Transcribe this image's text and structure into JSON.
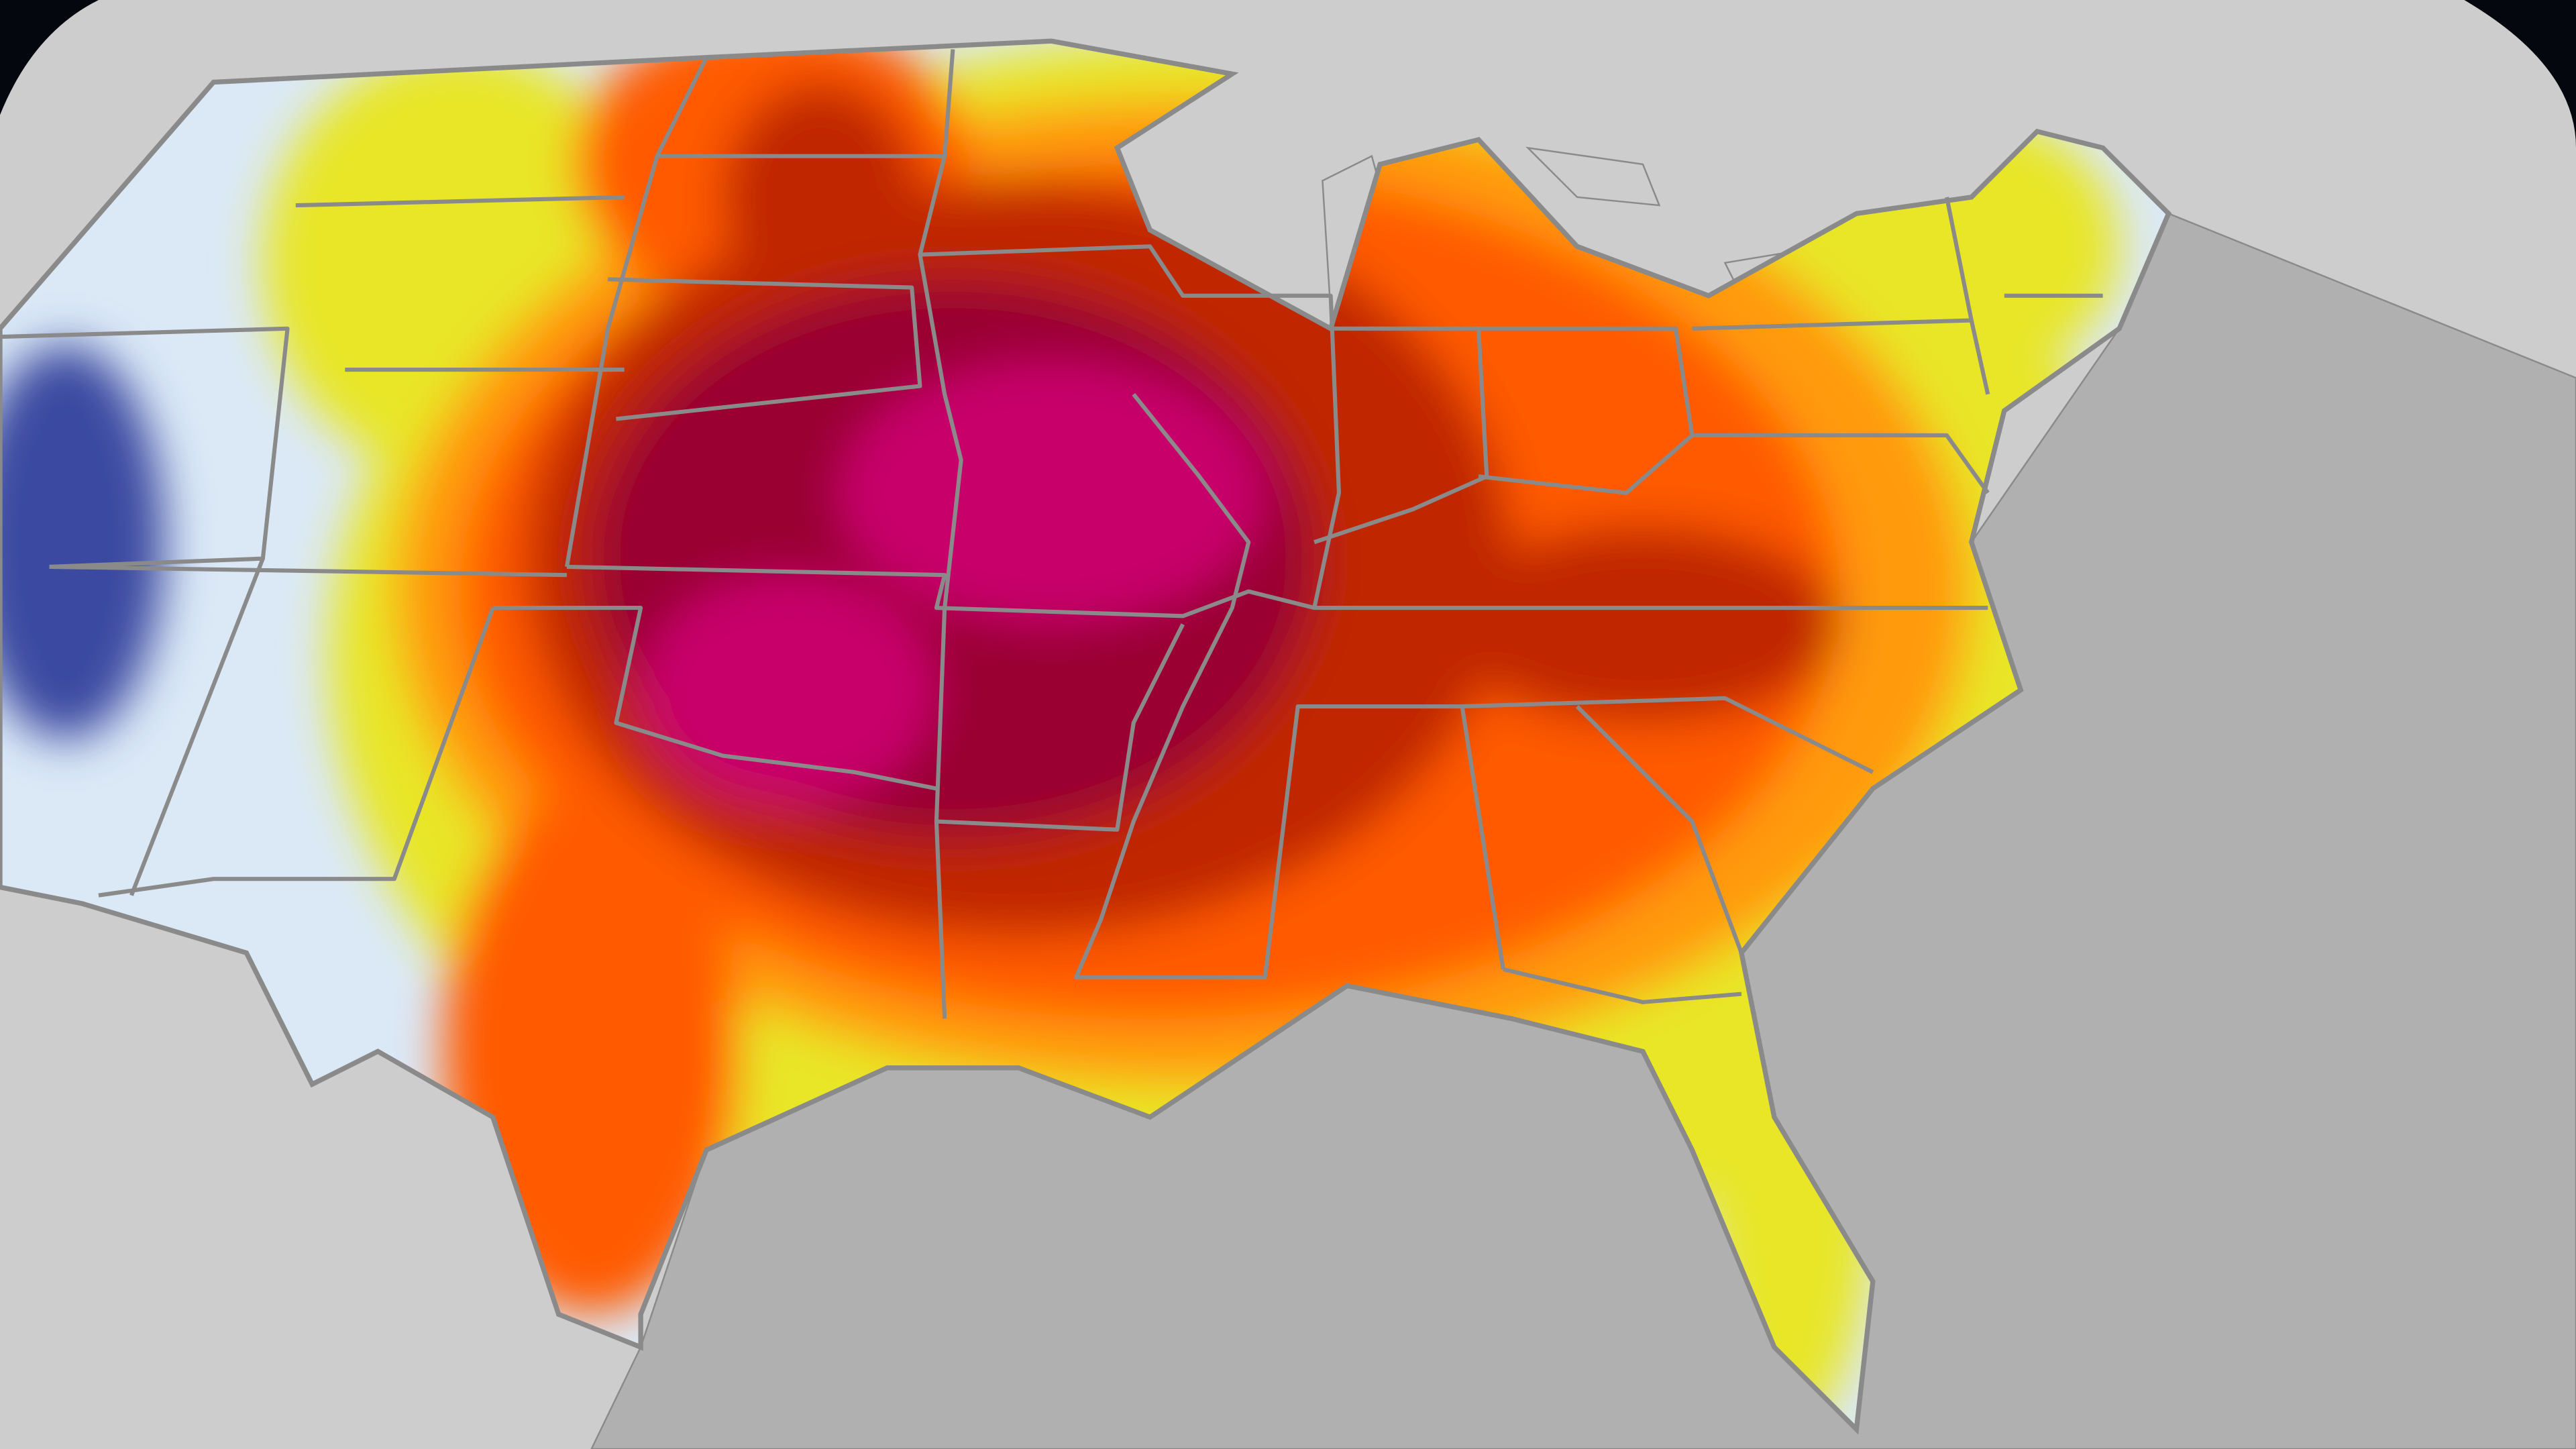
{
  "colors": {
    "space": "#05070f",
    "land": "#cdcdcd",
    "ocean": "#b0b0b0",
    "border": "#8a8a8a",
    "cool": "#dbe9f7",
    "cold": "#3a4aa0",
    "warm": "#e8e628",
    "hot": "#ff9a10",
    "hotter": "#ff5a00",
    "very_hot": "#c02800",
    "extreme": "#9a0030",
    "peak": "#c8006a"
  }
}
